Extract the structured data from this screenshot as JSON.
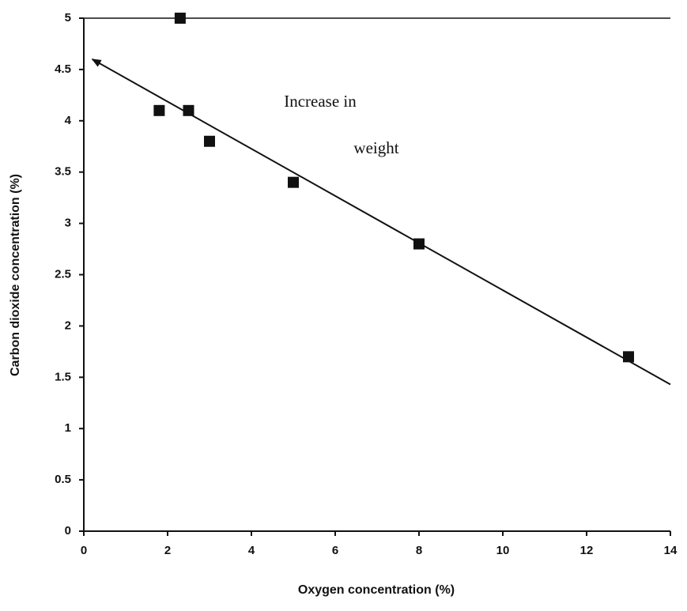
{
  "chart_data": {
    "type": "scatter",
    "x_label": "Oxygen concentration (%)",
    "y_label": "Carbon dioxide concentration (%)",
    "annotation": [
      "Increase in",
      "weight"
    ],
    "series": [
      {
        "color": "#111111",
        "x": [
          1.8,
          2.3,
          2.5,
          3.0,
          5.0,
          8.0,
          13.0
        ],
        "values": [
          4.1,
          5.0,
          4.1,
          3.8,
          3.4,
          2.8,
          1.7
        ]
      }
    ],
    "trendline": {
      "x": [
        14,
        0.2
      ],
      "y": [
        1.43,
        4.6
      ],
      "color": "#111111"
    },
    "xlim": [
      0,
      14
    ],
    "xticks": [
      0,
      2,
      4,
      6,
      8,
      10,
      12,
      14
    ],
    "ylim": [
      0,
      5
    ],
    "yticks": [
      0,
      0.5,
      1,
      1.5,
      2,
      2.5,
      3,
      3.5,
      4,
      4.5,
      5
    ]
  }
}
